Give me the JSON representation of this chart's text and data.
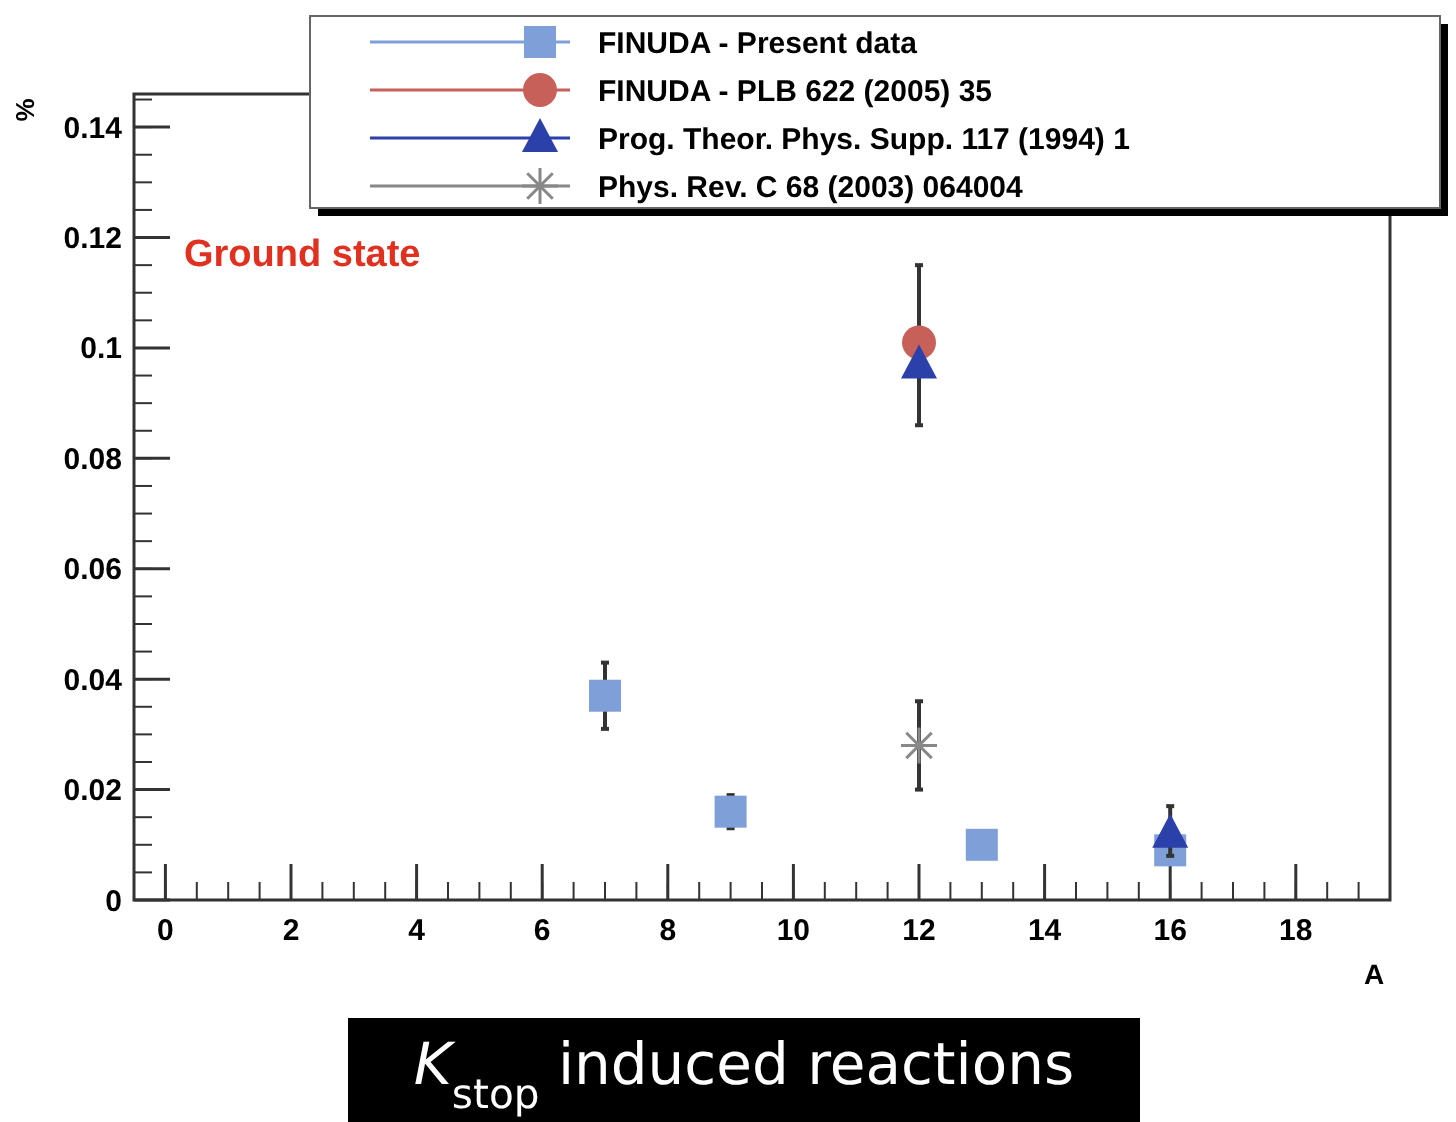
{
  "chart_data": {
    "type": "scatter",
    "xlabel": "A",
    "ylabel": "%",
    "xlim": [
      -0.5,
      19.5
    ],
    "ylim": [
      0,
      0.146
    ],
    "xticks": [
      0,
      2,
      4,
      6,
      8,
      10,
      12,
      14,
      16,
      18
    ],
    "yticks": [
      0,
      0.02,
      0.04,
      0.06,
      0.08,
      0.1,
      0.12,
      0.14
    ],
    "grid": false,
    "legend": "top",
    "series": [
      {
        "name": "FINUDA - Present data",
        "color": "#7f9fd8",
        "marker": "square",
        "x": [
          7,
          9,
          13,
          16
        ],
        "values": [
          0.037,
          0.016,
          0.01,
          0.009
        ],
        "errors": [
          0.006,
          0.003,
          null,
          null
        ]
      },
      {
        "name": "FINUDA - PLB 622 (2005) 35",
        "color": "#c8605a",
        "marker": "circle",
        "x": [
          12
        ],
        "values": [
          0.101
        ],
        "errors": [
          [
            0.086,
            0.115
          ]
        ]
      },
      {
        "name": "Prog. Theor. Phys. Supp. 117 (1994) 1",
        "color": "#2b40a8",
        "marker": "triangle",
        "x": [
          12,
          16
        ],
        "values": [
          0.097,
          0.012
        ],
        "errors": [
          null,
          [
            0.008,
            0.017
          ]
        ]
      },
      {
        "name": "Phys. Rev. C 68 (2003) 064004",
        "color": "#888888",
        "marker": "cross",
        "x": [
          12
        ],
        "values": [
          0.028
        ],
        "errors": [
          0.008
        ]
      }
    ],
    "annotations": [
      "Ground state",
      "K$_{stop}$ induced reactions"
    ]
  }
}
